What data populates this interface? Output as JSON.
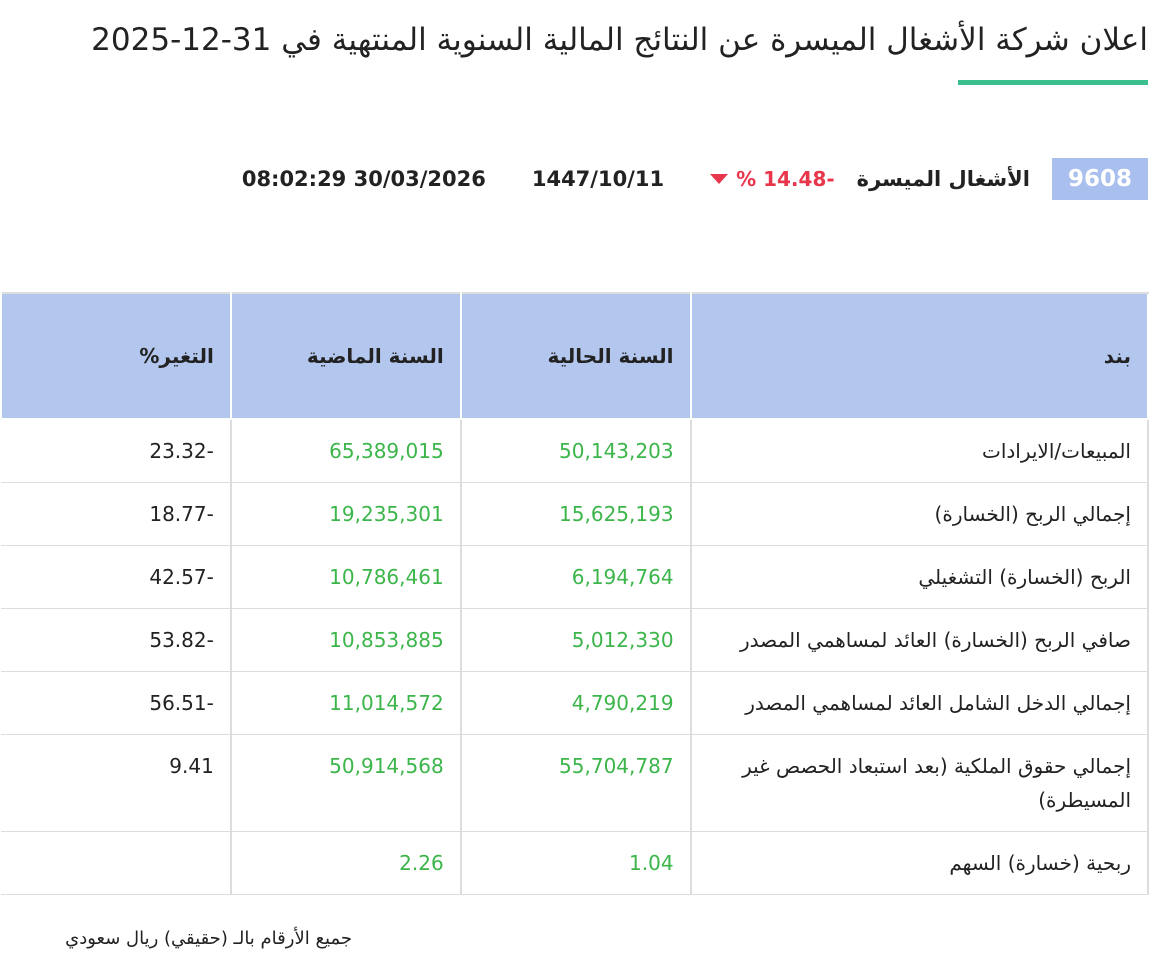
{
  "header": {
    "title": "اعلان شركة الأشغال الميسرة عن النتائج المالية السنوية المنتهية في 31-12-2025"
  },
  "stock": {
    "code": "9608",
    "name": "الأشغال الميسرة",
    "change": "-14.48 %",
    "hijri_date": "1447/10/11",
    "datetime": "30/03/2026 08:02:29"
  },
  "table": {
    "columns": [
      "بند",
      "السنة الحالية",
      "السنة الماضية",
      "التغير%"
    ],
    "rows": [
      [
        "المبيعات/الايرادات",
        "50,143,203",
        "65,389,015",
        "-23.32"
      ],
      [
        "إجمالي الربح (الخسارة)",
        "15,625,193",
        "19,235,301",
        "-18.77"
      ],
      [
        "الربح (الخسارة) التشغيلي",
        "6,194,764",
        "10,786,461",
        "-42.57"
      ],
      [
        "صافي الربح (الخسارة) العائد لمساهمي المصدر",
        "5,012,330",
        "10,853,885",
        "-53.82"
      ],
      [
        "إجمالي الدخل الشامل العائد لمساهمي المصدر",
        "4,790,219",
        "11,014,572",
        "-56.51"
      ],
      [
        "إجمالي حقوق الملكية (بعد استبعاد الحصص غير المسيطرة)",
        "55,704,787",
        "50,914,568",
        "9.41"
      ],
      [
        "ربحية (خسارة) السهم",
        "1.04",
        "2.26"
      ]
    ]
  },
  "footnote": "جميع الأرقام بالـ (حقيقي) ريال سعودي"
}
